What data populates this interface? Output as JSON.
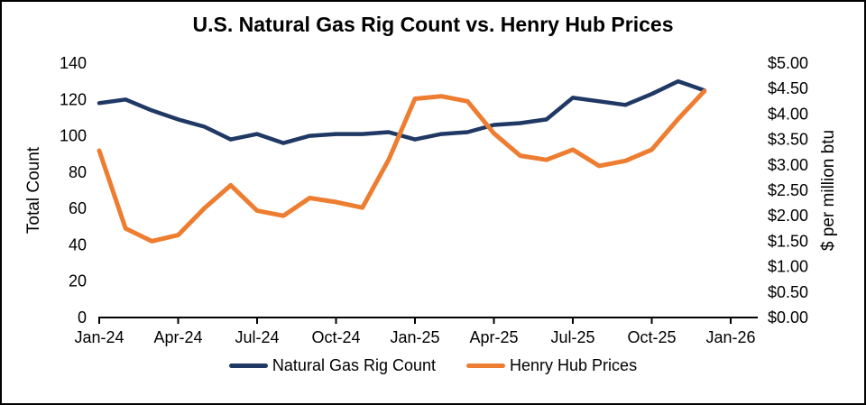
{
  "title": "U.S. Natural Gas Rig Count vs. Henry Hub Prices",
  "colors": {
    "background": "#ffffff",
    "frame_border": "#000000",
    "axis": "#000000",
    "rig_count_line": "#1f3864",
    "henry_hub_line": "#ed7d31"
  },
  "chart_data": {
    "type": "line",
    "title": "U.S. Natural Gas Rig Count vs. Henry Hub Prices",
    "grid": false,
    "legend_position": "bottom",
    "x_categories": [
      "Jan-24",
      "Feb-24",
      "Mar-24",
      "Apr-24",
      "May-24",
      "Jun-24",
      "Jul-24",
      "Aug-24",
      "Sep-24",
      "Oct-24",
      "Nov-24",
      "Dec-24",
      "Jan-25",
      "Feb-25",
      "Mar-25",
      "Apr-25",
      "May-25",
      "Jun-25",
      "Jul-25",
      "Aug-25",
      "Sep-25",
      "Oct-25",
      "Nov-25",
      "Dec-25"
    ],
    "x_axis": {
      "tick_labels": [
        "Jan-24",
        "Apr-24",
        "Jul-24",
        "Oct-24",
        "Jan-25",
        "Apr-25",
        "Jul-25",
        "Oct-25",
        "Jan-26"
      ],
      "range_months": 24
    },
    "left_axis": {
      "title": "Total Count",
      "min": 0,
      "max": 140,
      "tick_labels": [
        "0",
        "20",
        "40",
        "60",
        "80",
        "100",
        "120",
        "140"
      ]
    },
    "right_axis": {
      "title": "$ per million btu",
      "min": 0,
      "max": 5,
      "tick_labels": [
        "$0.00",
        "$0.50",
        "$1.00",
        "$1.50",
        "$2.00",
        "$2.50",
        "$3.00",
        "$3.50",
        "$4.00",
        "$4.50",
        "$5.00"
      ]
    },
    "series": [
      {
        "name": "Natural Gas Rig Count",
        "axis": "left",
        "color": "#1f3864",
        "stroke_width": 4.5,
        "values": [
          118,
          120,
          114,
          109,
          105,
          98,
          101,
          96,
          100,
          101,
          101,
          102,
          98,
          101,
          102,
          106,
          107,
          109,
          121,
          119,
          117,
          123,
          130,
          125
        ]
      },
      {
        "name": "Henry Hub Prices",
        "axis": "right",
        "color": "#ed7d31",
        "stroke_width": 5,
        "values": [
          3.28,
          1.75,
          1.5,
          1.62,
          2.15,
          2.6,
          2.1,
          2.0,
          2.35,
          2.27,
          2.16,
          3.1,
          4.3,
          4.35,
          4.25,
          3.62,
          3.18,
          3.1,
          3.3,
          2.98,
          3.08,
          3.3,
          3.9,
          4.45
        ]
      }
    ]
  }
}
